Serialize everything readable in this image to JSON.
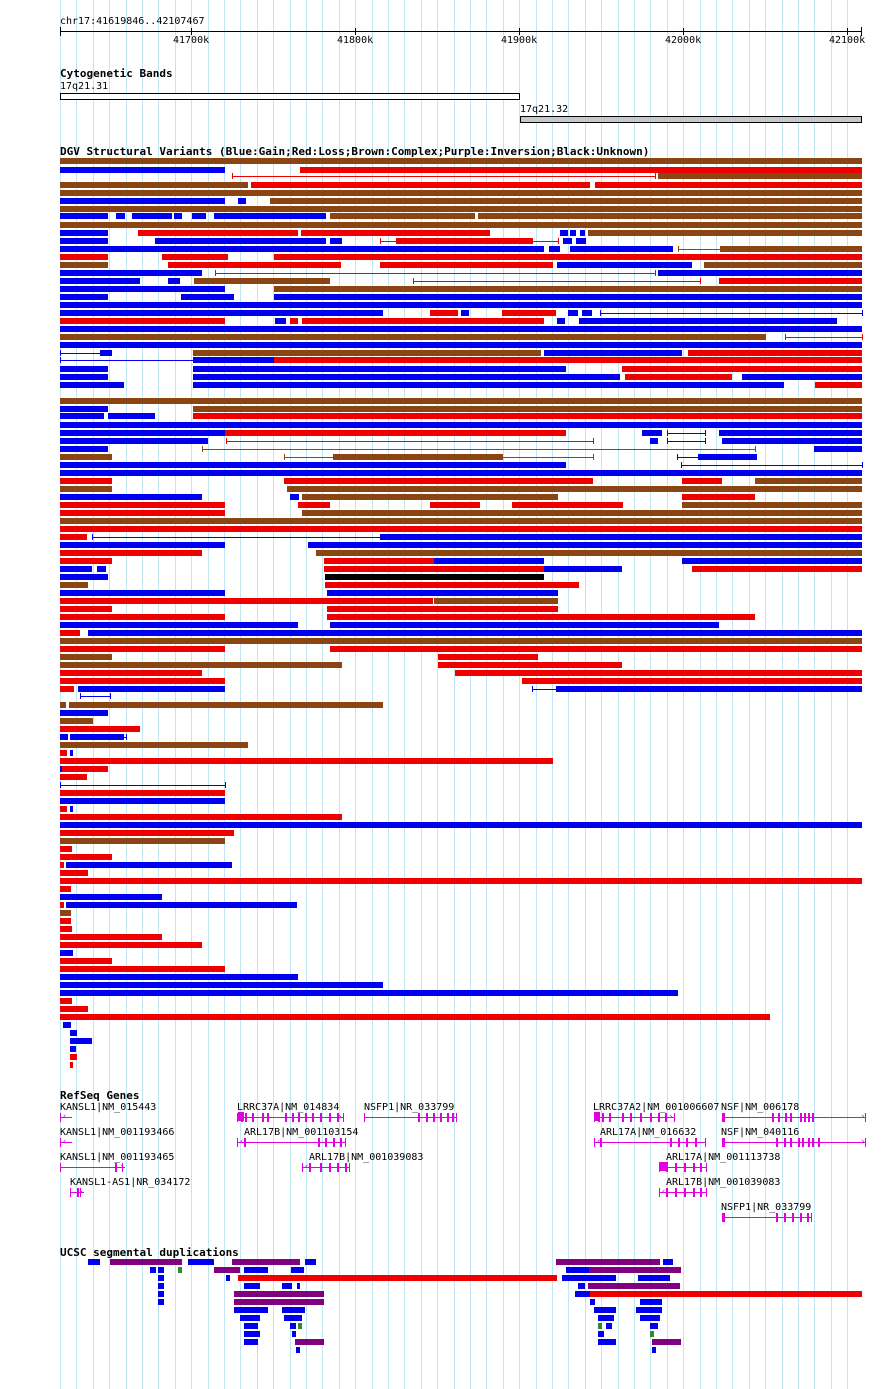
{
  "position_label": "chr17:41619846..42107467",
  "ruler": {
    "ticks": [
      "41700k",
      "41800k",
      "41900k",
      "42000k",
      "42100k"
    ]
  },
  "colors": {
    "gain": "#0000ee",
    "loss": "#ee0000",
    "complex": "#8b4513",
    "inversion": "#800080",
    "unknown": "#000000",
    "gene": "#e000e0",
    "gridline": "#bfe6f2",
    "segdup_gray": "#808080",
    "segdup_green": "#2e8b2e"
  },
  "cytobands": {
    "title": "Cytogenetic Bands",
    "bands": [
      {
        "name": "17q21.31",
        "fill": "#ffffff"
      },
      {
        "name": "17q21.32",
        "fill": "#c8c8c8"
      }
    ]
  },
  "dgv": {
    "title": "DGV Structural Variants (Blue:Gain;Red:Loss;Brown:Complex;Purple:Inversion;Black:Unknown)"
  },
  "refseq": {
    "title": "RefSeq Genes",
    "genes": [
      {
        "label": "KANSL1|NM_015443"
      },
      {
        "label": "KANSL1|NM_001193466"
      },
      {
        "label": "KANSL1|NM_001193465"
      },
      {
        "label": "KANSL1-AS1|NR_034172"
      },
      {
        "label": "LRRC37A|NM_014834"
      },
      {
        "label": "ARL17B|NM_001103154"
      },
      {
        "label": "ARL17B|NM_001039083"
      },
      {
        "label": "NSFP1|NR_033799"
      },
      {
        "label": "LRRC37A2|NM_001006607"
      },
      {
        "label": "ARL17A|NM_016632"
      },
      {
        "label": "ARL17A|NM_001113738"
      },
      {
        "label": "ARL17B|NM_001039083"
      },
      {
        "label": "NSF|NM_006178"
      },
      {
        "label": "NSF|NM_040116"
      },
      {
        "label": "NSFP1|NR_033799"
      }
    ]
  },
  "segdups": {
    "title": "UCSC segmental duplications"
  }
}
